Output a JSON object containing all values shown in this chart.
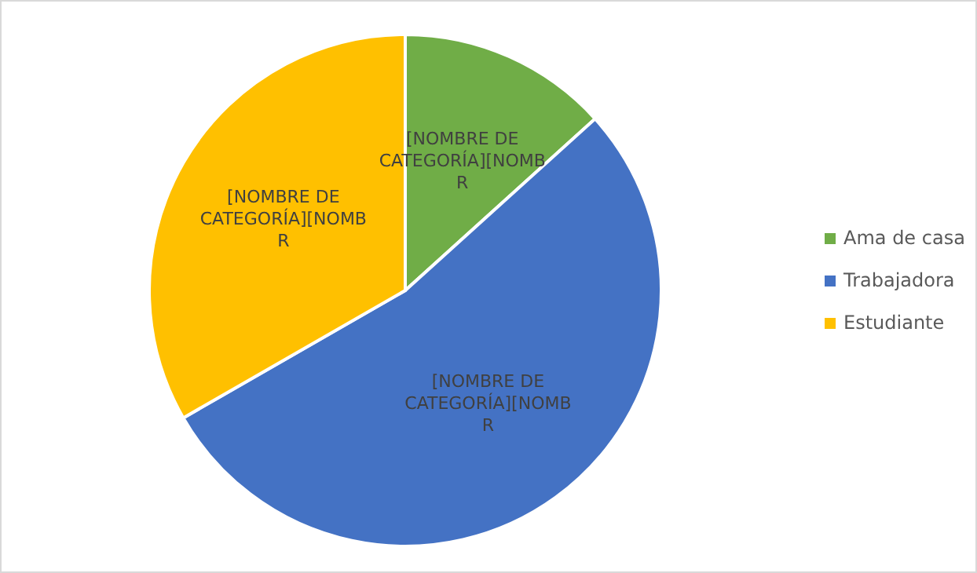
{
  "chart_data": {
    "type": "pie",
    "categories": [
      "Ama de casa",
      "Trabajadora",
      "Estudiante"
    ],
    "values": [
      13.3,
      53.4,
      33.3
    ],
    "colors": [
      "#70ad47",
      "#4472c4",
      "#ffc000"
    ],
    "value_labels": [
      "[NOMBRE DE CATEGORÍA][NOMBR",
      "[NOMBRE DE CATEGORÍA][NOMBR",
      "[NOMBRE DE CATEGORÍA][NOMBR"
    ],
    "legend": "right"
  }
}
